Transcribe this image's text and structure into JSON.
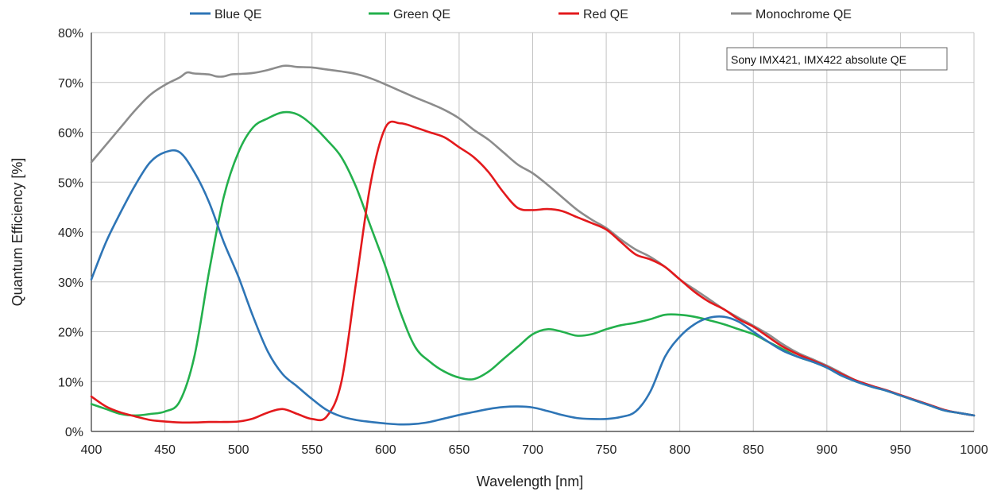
{
  "chart_data": {
    "type": "line",
    "title": "",
    "xlabel": "Wavelength [nm]",
    "ylabel": "Quantum Efficiency [%]",
    "xlim": [
      400,
      1000
    ],
    "ylim": [
      0,
      80
    ],
    "x_ticks": [
      "400",
      "450",
      "500",
      "550",
      "600",
      "650",
      "700",
      "750",
      "800",
      "850",
      "900",
      "950",
      "1000"
    ],
    "y_ticks": [
      "0%",
      "10%",
      "20%",
      "30%",
      "40%",
      "50%",
      "60%",
      "70%",
      "80%"
    ],
    "grid": true,
    "legend_position": "top",
    "annotation": "Sony IMX421, IMX422 absolute QE",
    "series": [
      {
        "name": "Blue QE",
        "color": "#2e75b6",
        "points": [
          [
            400,
            30.5
          ],
          [
            410,
            38
          ],
          [
            420,
            44
          ],
          [
            430,
            49.5
          ],
          [
            440,
            54
          ],
          [
            450,
            56
          ],
          [
            460,
            56
          ],
          [
            470,
            52
          ],
          [
            480,
            46
          ],
          [
            490,
            38
          ],
          [
            500,
            31
          ],
          [
            510,
            23
          ],
          [
            520,
            16
          ],
          [
            530,
            11.5
          ],
          [
            540,
            9
          ],
          [
            550,
            6.5
          ],
          [
            560,
            4.3
          ],
          [
            570,
            3
          ],
          [
            580,
            2.3
          ],
          [
            590,
            1.9
          ],
          [
            600,
            1.6
          ],
          [
            610,
            1.4
          ],
          [
            620,
            1.5
          ],
          [
            630,
            1.9
          ],
          [
            640,
            2.6
          ],
          [
            650,
            3.3
          ],
          [
            660,
            3.9
          ],
          [
            670,
            4.5
          ],
          [
            680,
            4.9
          ],
          [
            690,
            5
          ],
          [
            700,
            4.8
          ],
          [
            710,
            4.1
          ],
          [
            720,
            3.3
          ],
          [
            730,
            2.7
          ],
          [
            740,
            2.5
          ],
          [
            750,
            2.5
          ],
          [
            760,
            2.9
          ],
          [
            770,
            4
          ],
          [
            780,
            8
          ],
          [
            790,
            15
          ],
          [
            800,
            19
          ],
          [
            810,
            21.5
          ],
          [
            820,
            22.8
          ],
          [
            830,
            23
          ],
          [
            840,
            22
          ],
          [
            850,
            20
          ],
          [
            860,
            18
          ],
          [
            870,
            16.2
          ],
          [
            880,
            15
          ],
          [
            890,
            14
          ],
          [
            900,
            12.8
          ],
          [
            910,
            11.2
          ],
          [
            920,
            10
          ],
          [
            930,
            9
          ],
          [
            940,
            8.2
          ],
          [
            950,
            7.2
          ],
          [
            960,
            6.2
          ],
          [
            970,
            5.2
          ],
          [
            980,
            4.2
          ],
          [
            990,
            3.7
          ],
          [
            1000,
            3.2
          ]
        ]
      },
      {
        "name": "Green QE",
        "color": "#23b04c",
        "points": [
          [
            400,
            5.5
          ],
          [
            410,
            4.5
          ],
          [
            420,
            3.5
          ],
          [
            430,
            3.2
          ],
          [
            440,
            3.5
          ],
          [
            450,
            4
          ],
          [
            460,
            6
          ],
          [
            470,
            15
          ],
          [
            480,
            32
          ],
          [
            490,
            47
          ],
          [
            500,
            56
          ],
          [
            510,
            61
          ],
          [
            520,
            62.8
          ],
          [
            530,
            64
          ],
          [
            540,
            63.6
          ],
          [
            550,
            61.5
          ],
          [
            560,
            58.5
          ],
          [
            570,
            55
          ],
          [
            580,
            49
          ],
          [
            590,
            41
          ],
          [
            600,
            33
          ],
          [
            610,
            24
          ],
          [
            620,
            17
          ],
          [
            630,
            14
          ],
          [
            640,
            12
          ],
          [
            650,
            10.8
          ],
          [
            660,
            10.5
          ],
          [
            670,
            12
          ],
          [
            680,
            14.5
          ],
          [
            690,
            17
          ],
          [
            700,
            19.5
          ],
          [
            710,
            20.5
          ],
          [
            720,
            20
          ],
          [
            730,
            19.2
          ],
          [
            740,
            19.5
          ],
          [
            750,
            20.5
          ],
          [
            760,
            21.3
          ],
          [
            770,
            21.8
          ],
          [
            780,
            22.5
          ],
          [
            790,
            23.4
          ],
          [
            800,
            23.4
          ],
          [
            810,
            23
          ],
          [
            820,
            22.3
          ],
          [
            830,
            21.5
          ],
          [
            840,
            20.5
          ],
          [
            850,
            19.5
          ],
          [
            860,
            18
          ],
          [
            870,
            16.5
          ],
          [
            880,
            15
          ],
          [
            890,
            14
          ],
          [
            900,
            12.8
          ],
          [
            910,
            11.2
          ],
          [
            920,
            10
          ],
          [
            930,
            9
          ],
          [
            940,
            8.2
          ],
          [
            950,
            7.2
          ],
          [
            960,
            6.2
          ],
          [
            970,
            5.2
          ],
          [
            980,
            4.2
          ],
          [
            990,
            3.7
          ],
          [
            1000,
            3.2
          ]
        ]
      },
      {
        "name": "Red QE",
        "color": "#e3191c",
        "points": [
          [
            400,
            7
          ],
          [
            410,
            5
          ],
          [
            420,
            3.8
          ],
          [
            430,
            3
          ],
          [
            440,
            2.3
          ],
          [
            450,
            2
          ],
          [
            460,
            1.8
          ],
          [
            470,
            1.8
          ],
          [
            480,
            1.9
          ],
          [
            490,
            1.9
          ],
          [
            500,
            2
          ],
          [
            510,
            2.6
          ],
          [
            520,
            3.8
          ],
          [
            530,
            4.5
          ],
          [
            540,
            3.5
          ],
          [
            550,
            2.5
          ],
          [
            560,
            3
          ],
          [
            570,
            10
          ],
          [
            580,
            30
          ],
          [
            590,
            50
          ],
          [
            600,
            61
          ],
          [
            610,
            61.8
          ],
          [
            620,
            61
          ],
          [
            630,
            60
          ],
          [
            640,
            59
          ],
          [
            650,
            57
          ],
          [
            660,
            55
          ],
          [
            670,
            52
          ],
          [
            680,
            48
          ],
          [
            690,
            44.8
          ],
          [
            700,
            44.4
          ],
          [
            710,
            44.6
          ],
          [
            720,
            44.2
          ],
          [
            730,
            43
          ],
          [
            740,
            41.8
          ],
          [
            750,
            40.5
          ],
          [
            760,
            38
          ],
          [
            770,
            35.5
          ],
          [
            780,
            34.5
          ],
          [
            790,
            33
          ],
          [
            800,
            30.5
          ],
          [
            810,
            28
          ],
          [
            820,
            26
          ],
          [
            830,
            24.5
          ],
          [
            840,
            22.5
          ],
          [
            850,
            21
          ],
          [
            860,
            19
          ],
          [
            870,
            17
          ],
          [
            880,
            15.5
          ],
          [
            890,
            14.3
          ],
          [
            900,
            13
          ],
          [
            910,
            11.5
          ],
          [
            920,
            10.2
          ],
          [
            930,
            9.2
          ],
          [
            940,
            8.3
          ],
          [
            950,
            7.3
          ],
          [
            960,
            6.3
          ],
          [
            970,
            5.3
          ],
          [
            980,
            4.3
          ],
          [
            990,
            3.7
          ],
          [
            1000,
            3.2
          ]
        ]
      },
      {
        "name": "Monochrome QE",
        "color": "#8c8c8c",
        "points": [
          [
            400,
            54
          ],
          [
            410,
            57.5
          ],
          [
            420,
            61
          ],
          [
            430,
            64.5
          ],
          [
            440,
            67.5
          ],
          [
            450,
            69.5
          ],
          [
            460,
            71
          ],
          [
            465,
            72
          ],
          [
            470,
            71.8
          ],
          [
            480,
            71.6
          ],
          [
            485,
            71.2
          ],
          [
            490,
            71.2
          ],
          [
            495,
            71.6
          ],
          [
            500,
            71.7
          ],
          [
            510,
            71.9
          ],
          [
            520,
            72.5
          ],
          [
            530,
            73.3
          ],
          [
            535,
            73.3
          ],
          [
            540,
            73.1
          ],
          [
            550,
            73
          ],
          [
            560,
            72.6
          ],
          [
            570,
            72.2
          ],
          [
            580,
            71.7
          ],
          [
            590,
            70.8
          ],
          [
            600,
            69.6
          ],
          [
            610,
            68.3
          ],
          [
            620,
            67
          ],
          [
            630,
            65.8
          ],
          [
            640,
            64.5
          ],
          [
            650,
            62.8
          ],
          [
            660,
            60.5
          ],
          [
            670,
            58.5
          ],
          [
            680,
            56
          ],
          [
            690,
            53.5
          ],
          [
            700,
            51.8
          ],
          [
            710,
            49.5
          ],
          [
            720,
            47
          ],
          [
            730,
            44.5
          ],
          [
            740,
            42.5
          ],
          [
            750,
            40.8
          ],
          [
            760,
            38.5
          ],
          [
            770,
            36.5
          ],
          [
            780,
            35
          ],
          [
            790,
            33
          ],
          [
            800,
            30.5
          ],
          [
            810,
            28.5
          ],
          [
            820,
            26.5
          ],
          [
            830,
            24.5
          ],
          [
            840,
            22.8
          ],
          [
            850,
            21.2
          ],
          [
            860,
            19.5
          ],
          [
            870,
            17.5
          ],
          [
            880,
            15.8
          ],
          [
            890,
            14.5
          ],
          [
            900,
            13.2
          ],
          [
            910,
            11.7
          ],
          [
            920,
            10.2
          ],
          [
            930,
            9.2
          ],
          [
            940,
            8.3
          ],
          [
            950,
            7.3
          ],
          [
            960,
            6.3
          ],
          [
            970,
            5.3
          ],
          [
            980,
            4.3
          ],
          [
            990,
            3.7
          ],
          [
            1000,
            3.2
          ]
        ]
      }
    ]
  }
}
